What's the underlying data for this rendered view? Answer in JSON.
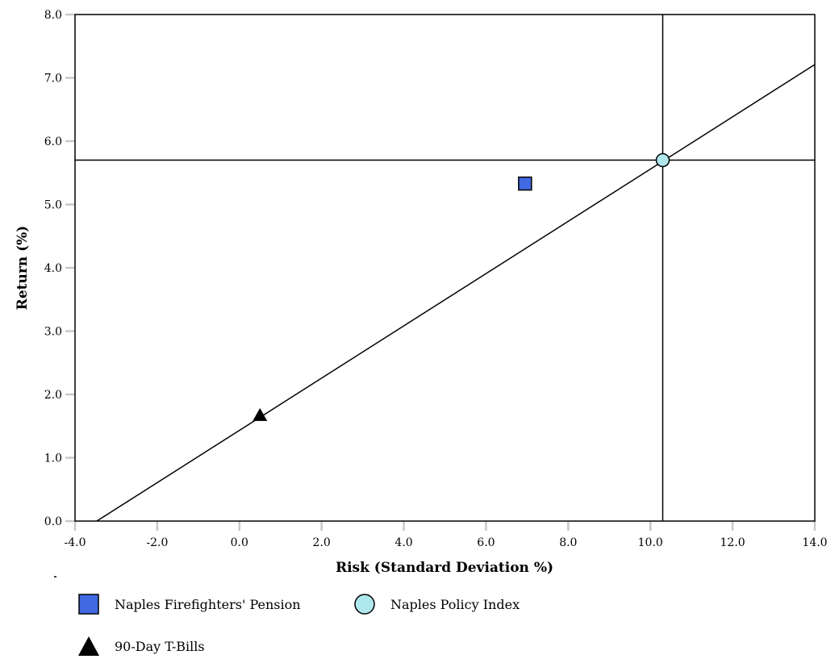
{
  "chart_data": {
    "type": "scatter",
    "xlabel": "Risk (Standard Deviation %)",
    "ylabel": "Return (%)",
    "xlim": [
      -4.0,
      14.0
    ],
    "ylim": [
      0.0,
      8.0
    ],
    "x_ticks": [
      "-4.0",
      "-2.0",
      "0.0",
      "2.0",
      "4.0",
      "6.0",
      "8.0",
      "10.0",
      "12.0",
      "14.0"
    ],
    "y_ticks": [
      "0.0",
      "1.0",
      "2.0",
      "3.0",
      "4.0",
      "5.0",
      "6.0",
      "7.0",
      "8.0"
    ],
    "points": [
      {
        "name": "Naples Firefighters' Pension",
        "x": 6.95,
        "y": 5.33,
        "marker": "square",
        "color": "#4169e1"
      },
      {
        "name": "Naples Policy Index",
        "x": 10.3,
        "y": 5.7,
        "marker": "circle",
        "color": "#aee8ec"
      },
      {
        "name": "90-Day T-Bills",
        "x": 0.5,
        "y": 1.67,
        "marker": "triangle",
        "color": "#000000"
      }
    ],
    "reference_lines": {
      "horizontal_y": 5.7,
      "vertical_x": 10.3,
      "capital_market_line": [
        {
          "x": -3.47,
          "y": 0.0
        },
        {
          "x": 14.0,
          "y": 7.21
        }
      ]
    },
    "grid": false,
    "legend_position": "bottom"
  },
  "legend": [
    {
      "label": "Naples Firefighters' Pension",
      "icon": "blue-square-icon"
    },
    {
      "label": "Naples Policy Index",
      "icon": "teal-circle-icon"
    },
    {
      "label": "90-Day T-Bills",
      "icon": "black-triangle-icon"
    }
  ]
}
